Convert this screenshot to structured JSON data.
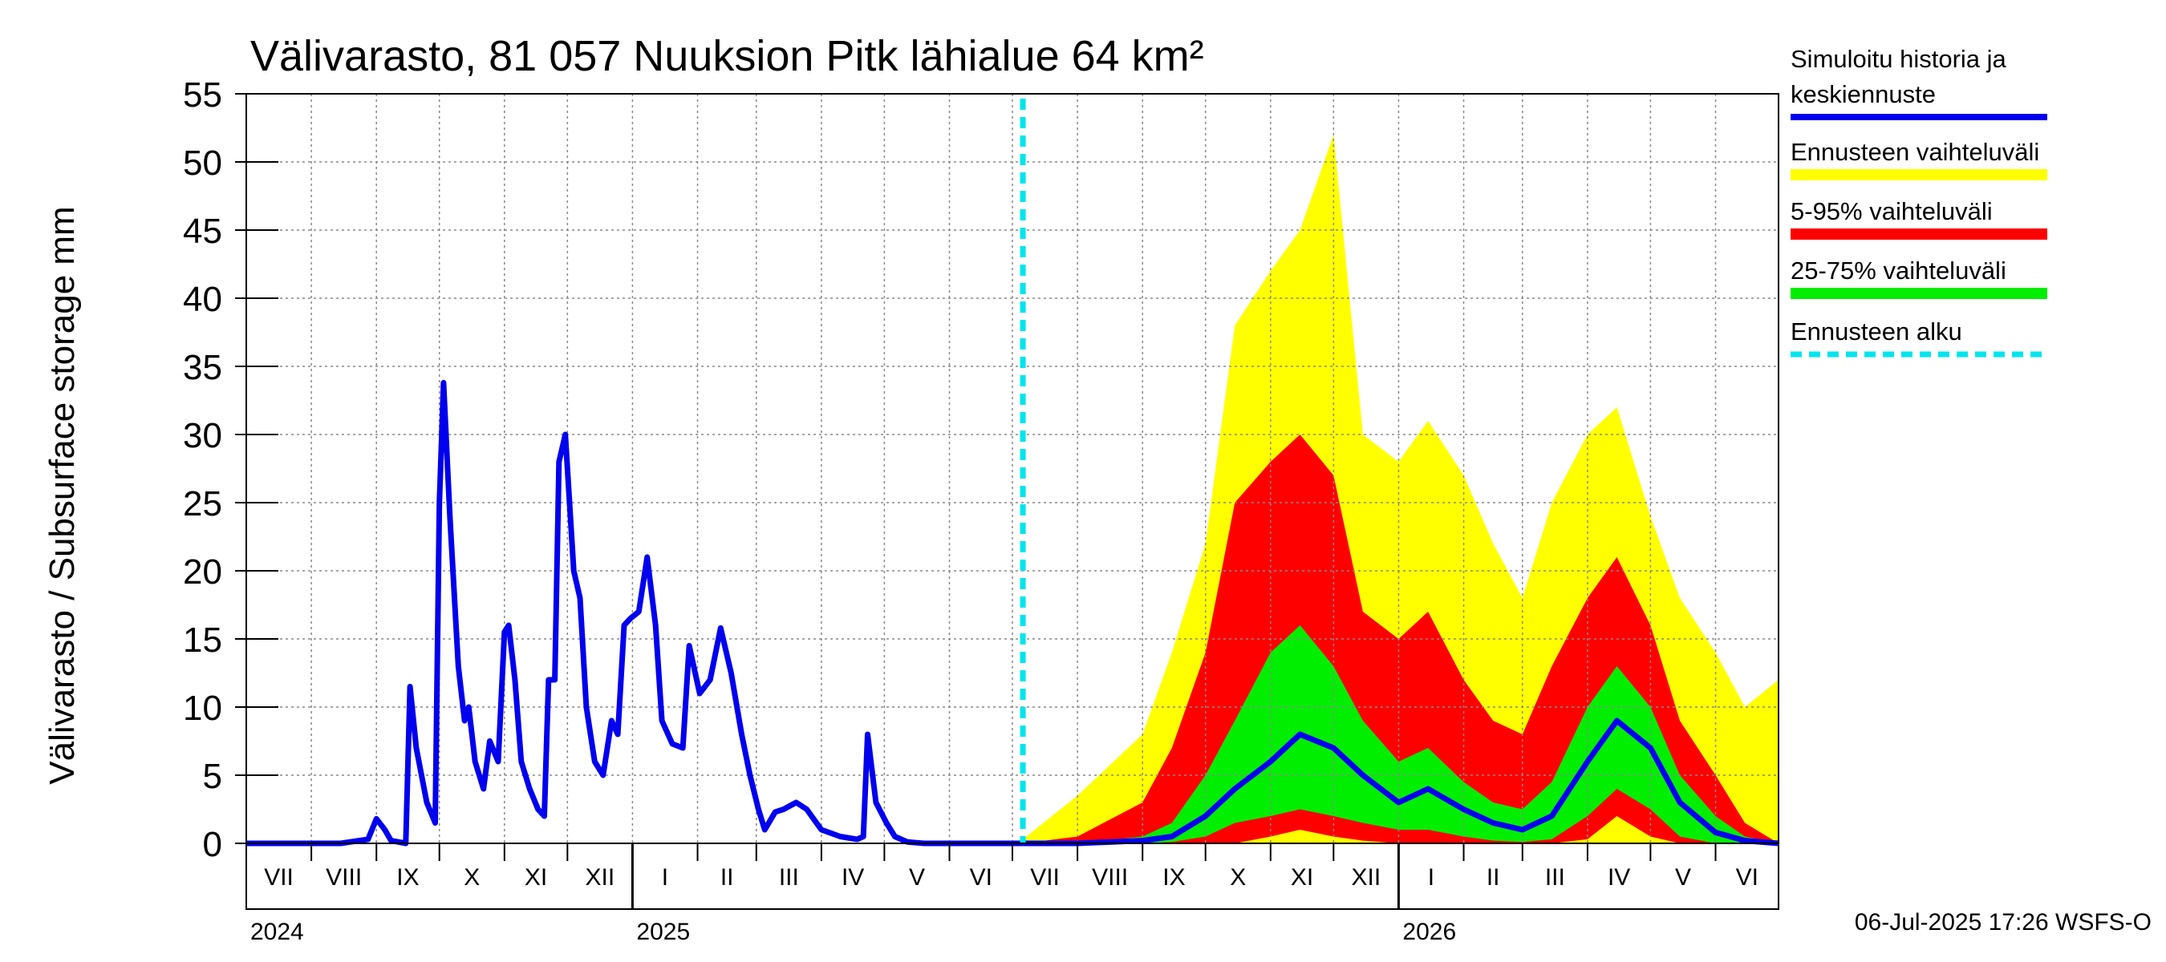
{
  "chart_data": {
    "type": "area",
    "title": "Välivarasto, 81 057 Nuuksion Pitk lähialue 64 km²",
    "ylabel": "Välivarasto / Subsurface storage  mm",
    "ylim": [
      0,
      55
    ],
    "yticks": [
      "0",
      "5",
      "10",
      "15",
      "20",
      "25",
      "30",
      "35",
      "40",
      "45",
      "50",
      "55"
    ],
    "months": [
      "VII",
      "VIII",
      "IX",
      "X",
      "XI",
      "XII",
      "I",
      "II",
      "III",
      "IV",
      "V",
      "VI",
      "VII",
      "VIII",
      "IX",
      "X",
      "XI",
      "XII",
      "I",
      "II",
      "III",
      "IV",
      "V",
      "VI"
    ],
    "years": [
      "2024",
      "2025",
      "2026"
    ],
    "x_start": "2024-07-01",
    "x_end": "2026-07-01",
    "forecast_start": "2025-07-06",
    "grid": true,
    "legend_position": "right",
    "legend": [
      {
        "label": "Simuloitu historia ja keskiennuste",
        "label_line1": "Simuloitu historia ja",
        "label_line2": "keskiennuste",
        "color": "#0000ee",
        "style": "solid"
      },
      {
        "label": "Ennusteen vaihteluväli",
        "color": "#ffff00",
        "style": "solid"
      },
      {
        "label": "5-95% vaihteluväli",
        "color": "#ff0000",
        "style": "solid"
      },
      {
        "label": "25-75% vaihteluväli",
        "color": "#00ee00",
        "style": "solid"
      },
      {
        "label": "Ennusteen alku",
        "color": "#00e5ee",
        "style": "dashed"
      }
    ],
    "history": {
      "name": "Simuloitu historia ja keskiennuste",
      "x": [
        "2024-07-01",
        "2024-08-15",
        "2024-08-28",
        "2024-09-01",
        "2024-09-05",
        "2024-09-08",
        "2024-09-15",
        "2024-09-17",
        "2024-09-20",
        "2024-09-25",
        "2024-09-29",
        "2024-10-01",
        "2024-10-03",
        "2024-10-06",
        "2024-10-10",
        "2024-10-13",
        "2024-10-15",
        "2024-10-18",
        "2024-10-22",
        "2024-10-25",
        "2024-10-29",
        "2024-11-01",
        "2024-11-03",
        "2024-11-06",
        "2024-11-09",
        "2024-11-13",
        "2024-11-17",
        "2024-11-20",
        "2024-11-22",
        "2024-11-25",
        "2024-11-27",
        "2024-11-30",
        "2024-12-04",
        "2024-12-07",
        "2024-12-10",
        "2024-12-14",
        "2024-12-18",
        "2024-12-22",
        "2024-12-25",
        "2024-12-28",
        "2024-12-31",
        "2025-01-04",
        "2025-01-08",
        "2025-01-12",
        "2025-01-15",
        "2025-01-20",
        "2025-01-25",
        "2025-01-28",
        "2025-02-02",
        "2025-02-07",
        "2025-02-12",
        "2025-02-17",
        "2025-02-22",
        "2025-02-26",
        "2025-03-02",
        "2025-03-05",
        "2025-03-10",
        "2025-03-14",
        "2025-03-20",
        "2025-03-25",
        "2025-04-01",
        "2025-04-10",
        "2025-04-18",
        "2025-04-21",
        "2025-04-23",
        "2025-04-27",
        "2025-05-02",
        "2025-05-06",
        "2025-05-12",
        "2025-05-20",
        "2025-06-05",
        "2025-07-06"
      ],
      "values": [
        0,
        0,
        0.3,
        1.8,
        1,
        0.2,
        0,
        11.5,
        7,
        3,
        1.5,
        25,
        33.8,
        24,
        13,
        9,
        10,
        6,
        4,
        7.5,
        6,
        15.5,
        16,
        12,
        6,
        4,
        2.5,
        2,
        12,
        12,
        28,
        30,
        20,
        18,
        10,
        6,
        5,
        9,
        8,
        16,
        16.5,
        17,
        21,
        16,
        9,
        7.3,
        7,
        14.5,
        11,
        12,
        15.8,
        12.5,
        8,
        5,
        2.5,
        1,
        2.3,
        2.5,
        3,
        2.5,
        1,
        0.5,
        0.3,
        0.5,
        8,
        3,
        1.5,
        0.5,
        0.1,
        0,
        0,
        0
      ]
    },
    "forecast": {
      "x": [
        "2025-07-06",
        "2025-08-01",
        "2025-09-01",
        "2025-09-15",
        "2025-10-01",
        "2025-10-15",
        "2025-11-01",
        "2025-11-15",
        "2025-12-01",
        "2025-12-15",
        "2026-01-01",
        "2026-01-15",
        "2026-02-01",
        "2026-02-15",
        "2026-03-01",
        "2026-03-15",
        "2026-04-01",
        "2026-04-15",
        "2026-05-01",
        "2026-05-15",
        "2026-06-01",
        "2026-06-15",
        "2026-07-01"
      ],
      "median": [
        0,
        0,
        0.2,
        0.5,
        2,
        4,
        6,
        8,
        7,
        5,
        3,
        4,
        2.5,
        1.5,
        1,
        2,
        6,
        9,
        7,
        3,
        0.8,
        0.2,
        0
      ],
      "p25": [
        0,
        0,
        0,
        0.1,
        0.5,
        1.5,
        2,
        2.5,
        2,
        1.5,
        1,
        1,
        0.5,
        0.2,
        0.1,
        0.3,
        2,
        4,
        2.5,
        0.5,
        0,
        0,
        0
      ],
      "p75": [
        0,
        0,
        0.5,
        1.5,
        5,
        9,
        14,
        16,
        13,
        9,
        6,
        7,
        4.5,
        3,
        2.5,
        4.5,
        10,
        13,
        10,
        5,
        2,
        0.5,
        0
      ],
      "p5": [
        0,
        0,
        0,
        0,
        0,
        0,
        0.5,
        1,
        0.5,
        0.2,
        0,
        0,
        0,
        0,
        0,
        0,
        0.3,
        2,
        0.5,
        0,
        0,
        0,
        0
      ],
      "p95": [
        0,
        0.5,
        3,
        7,
        14,
        25,
        28,
        30,
        27,
        17,
        15,
        17,
        12,
        9,
        8,
        13,
        18,
        21,
        16,
        9,
        5,
        1.5,
        0
      ],
      "min": [
        0,
        0,
        0,
        0,
        0,
        0,
        0,
        0,
        0,
        0,
        0,
        0,
        0,
        0,
        0,
        0,
        0,
        0,
        0,
        0,
        0,
        0,
        0
      ],
      "max": [
        0.3,
        3.5,
        8,
        14,
        22,
        38,
        42,
        45,
        52,
        30,
        28,
        31,
        27,
        22,
        18,
        25,
        30,
        32,
        24,
        18,
        14,
        10,
        12
      ]
    },
    "footer": "06-Jul-2025 17:26 WSFS-O"
  }
}
